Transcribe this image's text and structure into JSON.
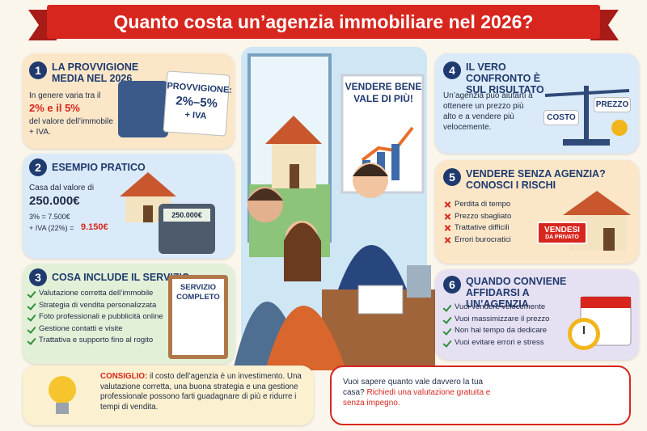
{
  "header": {
    "title": "Quanto costa un’agenzia immobiliare nel 2026?"
  },
  "sections": [
    {
      "number": "1",
      "heading": "LA PROVVIGIONE MEDIA NEL 2026",
      "text": "In genere varia tra il",
      "highlight": "2% e il 5%",
      "text2": "del valore dell’immobile + IVA.",
      "sign": [
        "PROVVIGIONE:",
        "2%–5%",
        "+ IVA"
      ]
    },
    {
      "number": "2",
      "heading": "ESEMPIO PRATICO",
      "text": "Casa dal valore di",
      "highlight": "250.000€",
      "line1": "3% = 7.500€",
      "line2": "+ IVA (22%) =",
      "result": "9.150€",
      "screen": "250.000€"
    },
    {
      "number": "3",
      "heading": "COSA INCLUDE IL SERVIZIO",
      "items": [
        "Valutazione corretta dell’immobile",
        "Strategia di vendita personalizzata",
        "Foto professionali e pubblicità online",
        "Gestione contatti e visite",
        "Trattativa e supporto fino al rogito"
      ],
      "clipboard": "SERVIZIO COMPLETO"
    },
    {
      "number": "4",
      "heading": "IL VERO CONFRONTO È SUL RISULTATO",
      "text": "Un’agenzia può aiutarti a ottenere un prezzo più alto e a vendere più velocemente.",
      "scale": [
        "COSTO",
        "PREZZO"
      ]
    },
    {
      "number": "5",
      "heading": "VENDERE SENZA AGENZIA? CONOSCI I RISCHI",
      "items": [
        "Perdita di tempo",
        "Prezzo sbagliato",
        "Trattative difficili",
        "Errori burocratici"
      ],
      "sign": [
        "VENDESI",
        "DA PRIVATO"
      ]
    },
    {
      "number": "6",
      "heading": "QUANDO CONVIENE AFFIDARSI A UN’AGENZIA",
      "items": [
        "Vuoi vendere velocemente",
        "Vuoi massimizzare il prezzo",
        "Non hai tempo da dedicare",
        "Vuoi evitare errori e stress"
      ]
    }
  ],
  "illustration": {
    "board": "VENDERE BENE VALE DI PIÙ!"
  },
  "tip": {
    "label": "CONSIGLIO:",
    "text": "il costo dell’agenzia è un investimento. Una valutazione corretta, una buona strategia e una gestione professionale possono farti guadagnare di più e ridurre i tempi di vendita."
  },
  "cta": {
    "text": "Vuoi sapere quanto vale davvero la tua casa?",
    "highlight": "Richiedi una valutazione gratuita e senza impegno."
  }
}
